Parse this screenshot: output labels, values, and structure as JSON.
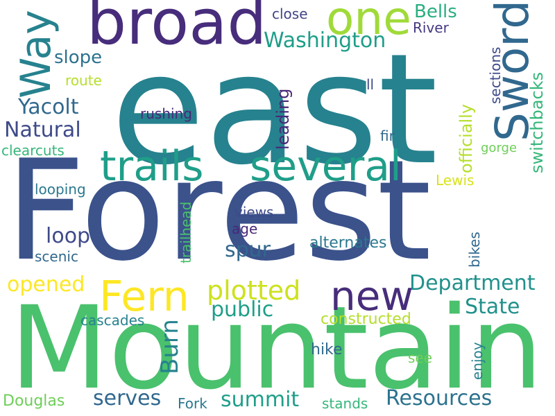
{
  "words": {
    "east": "east",
    "forest": "Forest",
    "mountain": "Mountain",
    "broad": "broad",
    "one": "one",
    "sword": "Sword",
    "trails": "trails",
    "several": "several",
    "way": "Way",
    "fern": "Fern",
    "new": "new",
    "plotted": "plotted",
    "department": "Department",
    "washington": "Washington",
    "bells": "Bells",
    "close": "close",
    "river": "River",
    "officially": "officially",
    "switchbacks": "switchbacks",
    "sections": "sections",
    "ll": "ll",
    "yacolt": "Yacolt",
    "natural": "Natural",
    "slope": "slope",
    "route": "route",
    "rushing": "rushing",
    "leading": "leading",
    "fir": "fir",
    "gorge": "gorge",
    "clearcuts": "clearcuts",
    "lewis": "Lewis",
    "looping": "looping",
    "views": "views",
    "age": "age",
    "loop": "loop",
    "trailhead": "trailhead",
    "spur": "spur",
    "alternates": "alternates",
    "scenic": "scenic",
    "bikes": "bikes",
    "opened": "opened",
    "burn": "Burn",
    "public": "public",
    "state": "State",
    "cascades": "cascades",
    "constructed": "constructed",
    "hike": "hike",
    "enjoy": "enjoy",
    "see": "see",
    "serves": "serves",
    "resources": "Resources",
    "summit": "summit",
    "douglas": "Douglas",
    "fork": "Fork",
    "stands": "stands"
  },
  "palette": {
    "background": "#ffffff",
    "dark_purple": "#482878",
    "deep_blue": "#3e4a89",
    "slate_blue": "#31688e",
    "teal": "#26828e",
    "sea_green": "#1f9e89",
    "green": "#35b779",
    "light_green": "#6ece58",
    "lime": "#b5de2b",
    "yellow": "#fde725"
  }
}
